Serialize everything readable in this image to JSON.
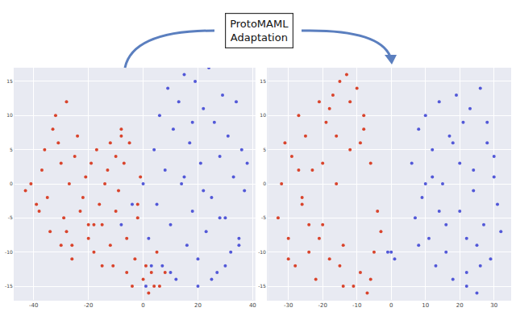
{
  "chart_data": [
    {
      "type": "scatter",
      "xlim": [
        -47,
        41
      ],
      "ylim": [
        -17,
        17
      ],
      "xticks": [
        -40,
        -20,
        0,
        20,
        40
      ],
      "yticks": [
        -15,
        -10,
        -5,
        0,
        5,
        10,
        15
      ],
      "grid": true,
      "marker": "circle",
      "series": [
        {
          "color": "#d9442c",
          "x": [
            -43,
            -41,
            -39,
            -37,
            -36,
            -35,
            -33,
            -32,
            -31,
            -30,
            -29,
            -28,
            -27,
            -26,
            -25,
            -24,
            -23,
            -22,
            -21,
            -20,
            -19,
            -18,
            -17,
            -16,
            -15,
            -14,
            -13,
            -12,
            -11,
            -10,
            -9,
            -8,
            -7,
            -6,
            -5,
            -4,
            -3,
            -2,
            -1,
            0,
            1,
            2,
            3,
            4,
            5,
            -34,
            -30,
            -26,
            -20,
            -15,
            -10,
            -6,
            -2,
            6,
            8,
            -38,
            -28,
            -18,
            -12,
            -8
          ],
          "y": [
            -1,
            0,
            -3,
            2,
            5,
            -2,
            8,
            10,
            6,
            3,
            -5,
            -7,
            0,
            -9,
            4,
            7,
            -4,
            -2,
            1,
            -8,
            3,
            -10,
            5,
            -3,
            -6,
            0,
            2,
            6,
            -12,
            4,
            -1,
            8,
            3,
            -13,
            6,
            -15,
            -11,
            -5,
            1,
            -14,
            -12,
            -16,
            -13,
            -15,
            -10,
            -7,
            -9,
            -11,
            -6,
            -12,
            -4,
            -8,
            -3,
            -15,
            -13,
            -4,
            12,
            -6,
            -9,
            7
          ]
        },
        {
          "color": "#5258d8",
          "x": [
            2,
            4,
            5,
            6,
            7,
            8,
            9,
            10,
            11,
            12,
            13,
            14,
            15,
            16,
            17,
            18,
            19,
            20,
            21,
            22,
            23,
            24,
            25,
            26,
            27,
            28,
            29,
            30,
            31,
            32,
            33,
            34,
            35,
            36,
            37,
            38,
            -8,
            -4,
            0,
            1,
            3,
            10,
            15,
            20,
            25,
            30,
            35,
            18,
            22,
            28
          ],
          "y": [
            -8,
            5,
            -3,
            10,
            -12,
            2,
            14,
            -6,
            8,
            -14,
            12,
            0,
            16,
            -9,
            6,
            -4,
            15,
            -11,
            3,
            11,
            -7,
            17,
            -2,
            9,
            -13,
            4,
            13,
            -5,
            7,
            -10,
            1,
            12,
            -8,
            5,
            -1,
            3,
            -6,
            -3,
            0,
            -15,
            -12,
            -13,
            1,
            -15,
            -14,
            -12,
            -9,
            9,
            -1,
            -5
          ]
        }
      ]
    },
    {
      "type": "scatter",
      "xlim": [
        -36,
        35
      ],
      "ylim": [
        -17,
        17
      ],
      "xticks": [
        -30,
        -20,
        -10,
        0,
        10,
        20,
        30
      ],
      "yticks": [
        -15,
        -10,
        -5,
        0,
        5,
        10,
        15
      ],
      "grid": true,
      "marker": "circle",
      "series": [
        {
          "color": "#d9442c",
          "x": [
            -33,
            -32,
            -31,
            -30,
            -29,
            -28,
            -27,
            -26,
            -25,
            -24,
            -23,
            -22,
            -21,
            -20,
            -19,
            -18,
            -17,
            -16,
            -15,
            -14,
            -13,
            -12,
            -11,
            -10,
            -9,
            -8,
            -7,
            -6,
            -5,
            -4,
            -30,
            -27,
            -24,
            -21,
            -18,
            -15,
            -12,
            -9,
            -6,
            -3,
            -26,
            -20,
            -14,
            -8,
            -16
          ],
          "y": [
            -5,
            0,
            6,
            -8,
            4,
            -12,
            10,
            -3,
            7,
            -10,
            2,
            -14,
            12,
            -6,
            9,
            -11,
            13,
            0,
            15,
            -9,
            16,
            5,
            -15,
            14,
            -13,
            8,
            -16,
            3,
            -10,
            -4,
            -11,
            2,
            -6,
            -8,
            11,
            -12,
            12,
            6,
            -14,
            -7,
            -2,
            3,
            -15,
            10,
            7
          ]
        },
        {
          "color": "#5258d8",
          "x": [
            6,
            7,
            8,
            9,
            10,
            11,
            12,
            13,
            14,
            15,
            16,
            17,
            18,
            19,
            20,
            21,
            22,
            23,
            24,
            25,
            26,
            27,
            28,
            29,
            30,
            31,
            32,
            8,
            12,
            16,
            20,
            24,
            28,
            10,
            14,
            18,
            22,
            26,
            30,
            0,
            1,
            -1,
            22,
            25
          ],
          "y": [
            3,
            -5,
            8,
            -2,
            10,
            -8,
            5,
            -12,
            12,
            0,
            -10,
            7,
            -14,
            13,
            -4,
            9,
            -13,
            11,
            2,
            -9,
            14,
            -6,
            6,
            -11,
            4,
            -3,
            -7,
            -9,
            1,
            -6,
            3,
            -1,
            9,
            0,
            -4,
            6,
            -8,
            -12,
            1,
            -10,
            -11,
            -10,
            -15,
            -16
          ]
        }
      ]
    }
  ],
  "annotation": {
    "lines": [
      "ProtoMAML",
      "Adaptation"
    ]
  }
}
